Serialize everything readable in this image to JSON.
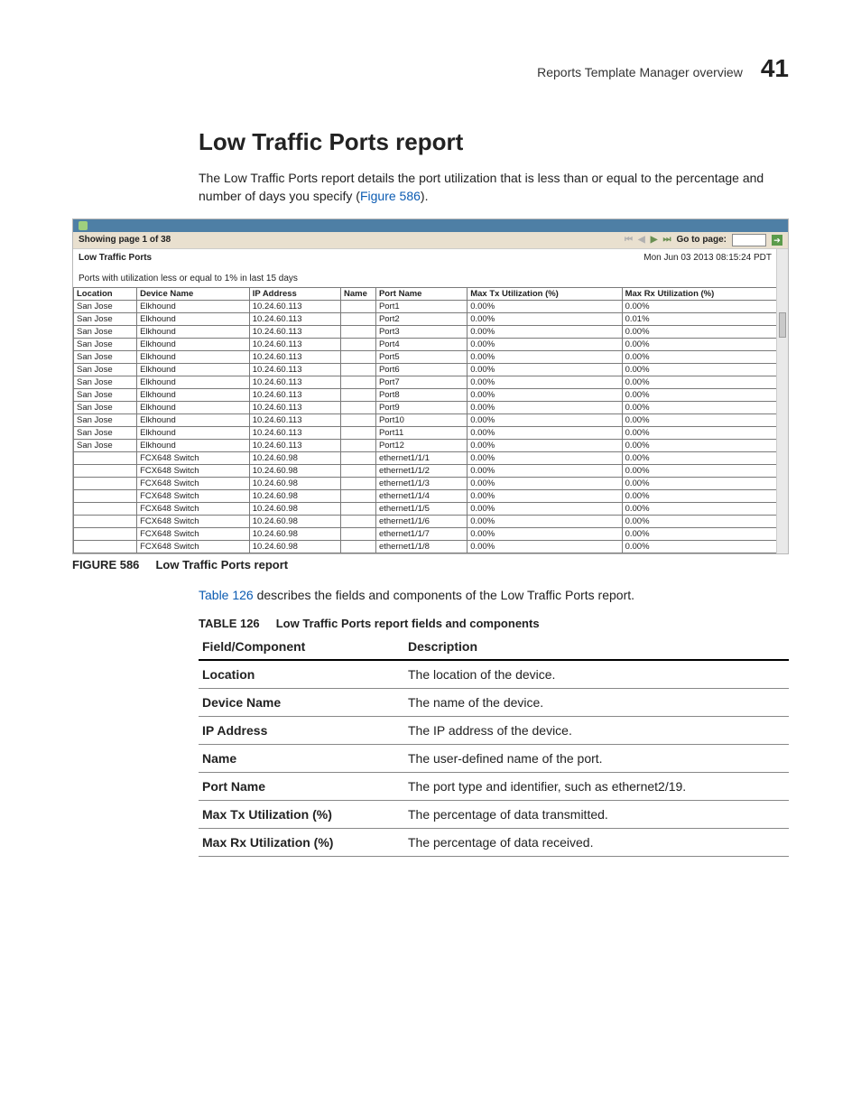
{
  "header": {
    "overview": "Reports Template Manager overview",
    "chapter_number": "41"
  },
  "section": {
    "title": "Low Traffic Ports report",
    "intro": "The Low Traffic Ports report details the port utilization that is less than or equal to the percentage and number of days you specify (",
    "intro_link": "Figure 586",
    "intro_tail": ")."
  },
  "screenshot": {
    "paging_text": "Showing page  1  of  38",
    "goto_label": "Go to page:",
    "report_title": "Low Traffic Ports",
    "timestamp": "Mon Jun 03 2013 08:15:24 PDT",
    "subtitle": "Ports with utilization less or equal to 1% in last 15 days",
    "columns": [
      "Location",
      "Device Name",
      "IP Address",
      "Name",
      "Port Name",
      "Max Tx Utilization (%)",
      "Max Rx Utilization (%)"
    ],
    "col_widths": [
      "9%",
      "16%",
      "13%",
      "5%",
      "13%",
      "22%",
      "22%"
    ],
    "rows": [
      [
        "San Jose",
        "Elkhound",
        "10.24.60.113",
        "",
        "Port1",
        "0.00%",
        "0.00%"
      ],
      [
        "San Jose",
        "Elkhound",
        "10.24.60.113",
        "",
        "Port2",
        "0.00%",
        "0.01%"
      ],
      [
        "San Jose",
        "Elkhound",
        "10.24.60.113",
        "",
        "Port3",
        "0.00%",
        "0.00%"
      ],
      [
        "San Jose",
        "Elkhound",
        "10.24.60.113",
        "",
        "Port4",
        "0.00%",
        "0.00%"
      ],
      [
        "San Jose",
        "Elkhound",
        "10.24.60.113",
        "",
        "Port5",
        "0.00%",
        "0.00%"
      ],
      [
        "San Jose",
        "Elkhound",
        "10.24.60.113",
        "",
        "Port6",
        "0.00%",
        "0.00%"
      ],
      [
        "San Jose",
        "Elkhound",
        "10.24.60.113",
        "",
        "Port7",
        "0.00%",
        "0.00%"
      ],
      [
        "San Jose",
        "Elkhound",
        "10.24.60.113",
        "",
        "Port8",
        "0.00%",
        "0.00%"
      ],
      [
        "San Jose",
        "Elkhound",
        "10.24.60.113",
        "",
        "Port9",
        "0.00%",
        "0.00%"
      ],
      [
        "San Jose",
        "Elkhound",
        "10.24.60.113",
        "",
        "Port10",
        "0.00%",
        "0.00%"
      ],
      [
        "San Jose",
        "Elkhound",
        "10.24.60.113",
        "",
        "Port11",
        "0.00%",
        "0.00%"
      ],
      [
        "San Jose",
        "Elkhound",
        "10.24.60.113",
        "",
        "Port12",
        "0.00%",
        "0.00%"
      ],
      [
        "",
        "FCX648 Switch",
        "10.24.60.98",
        "",
        "ethernet1/1/1",
        "0.00%",
        "0.00%"
      ],
      [
        "",
        "FCX648 Switch",
        "10.24.60.98",
        "",
        "ethernet1/1/2",
        "0.00%",
        "0.00%"
      ],
      [
        "",
        "FCX648 Switch",
        "10.24.60.98",
        "",
        "ethernet1/1/3",
        "0.00%",
        "0.00%"
      ],
      [
        "",
        "FCX648 Switch",
        "10.24.60.98",
        "",
        "ethernet1/1/4",
        "0.00%",
        "0.00%"
      ],
      [
        "",
        "FCX648 Switch",
        "10.24.60.98",
        "",
        "ethernet1/1/5",
        "0.00%",
        "0.00%"
      ],
      [
        "",
        "FCX648 Switch",
        "10.24.60.98",
        "",
        "ethernet1/1/6",
        "0.00%",
        "0.00%"
      ],
      [
        "",
        "FCX648 Switch",
        "10.24.60.98",
        "",
        "ethernet1/1/7",
        "0.00%",
        "0.00%"
      ],
      [
        "",
        "FCX648 Switch",
        "10.24.60.98",
        "",
        "ethernet1/1/8",
        "0.00%",
        "0.00%"
      ]
    ]
  },
  "figure": {
    "label": "FIGURE 586",
    "caption": "Low Traffic Ports report"
  },
  "crossref": {
    "link": "Table 126",
    "text": " describes the fields and components of the Low Traffic Ports report."
  },
  "table126": {
    "label": "TABLE 126",
    "caption": "Low Traffic Ports report fields and components",
    "header_field": "Field/Component",
    "header_desc": "Description",
    "rows": [
      {
        "field": "Location",
        "desc": "The location of the device."
      },
      {
        "field": "Device Name",
        "desc": "The name of the device."
      },
      {
        "field": "IP Address",
        "desc": "The IP address of the device."
      },
      {
        "field": "Name",
        "desc": "The user-defined name of the port."
      },
      {
        "field": "Port Name",
        "desc": "The port type and identifier, such as ethernet2/19."
      },
      {
        "field": "Max Tx Utilization (%)",
        "desc": "The percentage of data transmitted."
      },
      {
        "field": "Max Rx Utilization (%)",
        "desc": "The percentage of data received."
      }
    ]
  }
}
